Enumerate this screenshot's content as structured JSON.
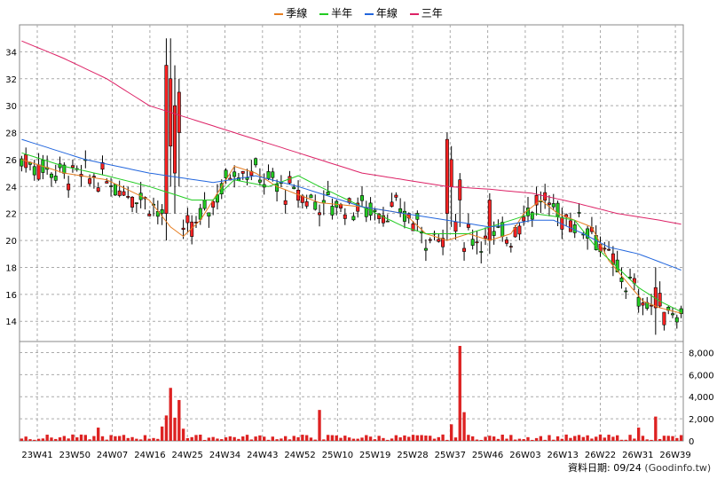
{
  "chart_data": {
    "type": "candlestick",
    "legend": [
      {
        "name": "季線",
        "color": "#e67e22"
      },
      {
        "name": "半年",
        "color": "#22cc22"
      },
      {
        "name": "年線",
        "color": "#2266dd"
      },
      {
        "name": "三年",
        "color": "#dd2266"
      }
    ],
    "footer": {
      "label": "資料日期: 09/24",
      "source": "(Goodinfo.tw)"
    },
    "x_ticks": [
      "23W41",
      "23W50",
      "24W07",
      "24W16",
      "24W25",
      "24W34",
      "24W43",
      "24W52",
      "25W10",
      "25W19",
      "25W28",
      "25W37",
      "25W46",
      "26W03",
      "26W13",
      "26W22",
      "26W31",
      "26W39"
    ],
    "price_axis": {
      "ylim": [
        12.5,
        36
      ],
      "ticks": [
        14,
        16,
        18,
        20,
        22,
        24,
        26,
        28,
        30,
        32,
        34
      ]
    },
    "volume_axis": {
      "ylim": [
        0,
        9000
      ],
      "ticks": [
        "0",
        "2,000",
        "4,000",
        "6,000",
        "8,000"
      ],
      "tick_values": [
        0,
        2000,
        4000,
        6000,
        8000
      ]
    },
    "num_weeks": 156,
    "grid": true,
    "ma_anchors": {
      "季線": [
        [
          0,
          26.0
        ],
        [
          10,
          25.0
        ],
        [
          20,
          24.5
        ],
        [
          30,
          23.0
        ],
        [
          35,
          21.0
        ],
        [
          38,
          20.3
        ],
        [
          42,
          21.5
        ],
        [
          46,
          23.5
        ],
        [
          50,
          25.5
        ],
        [
          55,
          25.0
        ],
        [
          60,
          24.0
        ],
        [
          70,
          22.8
        ],
        [
          80,
          22.5
        ],
        [
          90,
          22.0
        ],
        [
          95,
          20.5
        ],
        [
          100,
          20.0
        ],
        [
          105,
          20.5
        ],
        [
          110,
          20.0
        ],
        [
          115,
          20.5
        ],
        [
          118,
          22.0
        ],
        [
          122,
          23.0
        ],
        [
          126,
          22.0
        ],
        [
          130,
          21.5
        ],
        [
          134,
          21.0
        ],
        [
          138,
          18.5
        ],
        [
          142,
          17.0
        ],
        [
          146,
          15.5
        ],
        [
          150,
          15.0
        ],
        [
          155,
          14.6
        ]
      ],
      "半年": [
        [
          0,
          26.5
        ],
        [
          10,
          25.5
        ],
        [
          20,
          24.8
        ],
        [
          30,
          24.0
        ],
        [
          40,
          23.0
        ],
        [
          45,
          23.0
        ],
        [
          50,
          24.5
        ],
        [
          58,
          24.0
        ],
        [
          65,
          24.8
        ],
        [
          70,
          24.0
        ],
        [
          80,
          22.5
        ],
        [
          90,
          21.0
        ],
        [
          95,
          20.5
        ],
        [
          100,
          20.5
        ],
        [
          105,
          20.5
        ],
        [
          110,
          21.0
        ],
        [
          115,
          21.5
        ],
        [
          120,
          22.0
        ],
        [
          125,
          21.8
        ],
        [
          130,
          21.5
        ],
        [
          135,
          19.5
        ],
        [
          140,
          18.0
        ],
        [
          145,
          16.5
        ],
        [
          150,
          15.5
        ],
        [
          155,
          14.7
        ]
      ],
      "年線": [
        [
          0,
          27.5
        ],
        [
          15,
          26.0
        ],
        [
          30,
          25.0
        ],
        [
          45,
          24.3
        ],
        [
          55,
          24.8
        ],
        [
          65,
          24.0
        ],
        [
          80,
          22.5
        ],
        [
          90,
          22.0
        ],
        [
          100,
          21.5
        ],
        [
          110,
          21.0
        ],
        [
          115,
          21.2
        ],
        [
          120,
          21.5
        ],
        [
          125,
          21.5
        ],
        [
          132,
          20.5
        ],
        [
          138,
          19.5
        ],
        [
          145,
          19.0
        ],
        [
          155,
          17.8
        ]
      ],
      "三年": [
        [
          0,
          34.8
        ],
        [
          10,
          33.5
        ],
        [
          20,
          32.0
        ],
        [
          30,
          30.0
        ],
        [
          40,
          29.0
        ],
        [
          50,
          28.0
        ],
        [
          60,
          27.0
        ],
        [
          70,
          26.0
        ],
        [
          80,
          25.0
        ],
        [
          90,
          24.5
        ],
        [
          100,
          24.0
        ],
        [
          110,
          23.8
        ],
        [
          120,
          23.5
        ],
        [
          130,
          22.8
        ],
        [
          140,
          22.0
        ],
        [
          150,
          21.5
        ],
        [
          155,
          21.2
        ]
      ]
    }
  }
}
